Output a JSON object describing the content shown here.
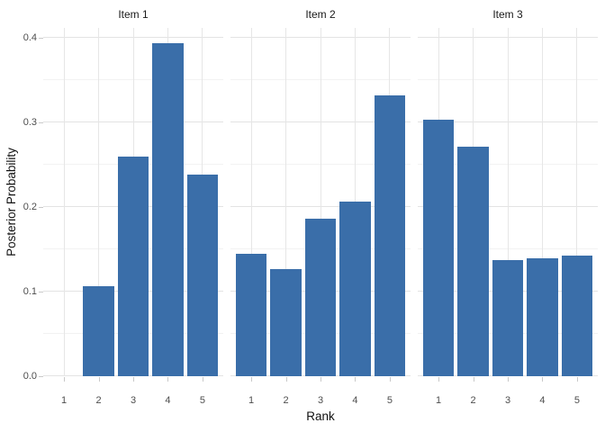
{
  "chart_data": {
    "type": "bar",
    "title": "",
    "xlabel": "Rank",
    "ylabel": "Posterior Probability",
    "categories": [
      "1",
      "2",
      "3",
      "4",
      "5"
    ],
    "facets": [
      {
        "title": "Item 1",
        "values": [
          0.0,
          0.107,
          0.26,
          0.394,
          0.239
        ]
      },
      {
        "title": "Item 2",
        "values": [
          0.145,
          0.127,
          0.186,
          0.207,
          0.332
        ]
      },
      {
        "title": "Item 3",
        "values": [
          0.303,
          0.272,
          0.137,
          0.14,
          0.143
        ]
      }
    ],
    "ylim": [
      0,
      0.412
    ],
    "y_major_tick_labels": [
      "0.0",
      "0.1",
      "0.2",
      "0.3",
      "0.4"
    ],
    "y_minor_ticks": [
      0.05,
      0.15,
      0.25,
      0.35
    ],
    "bar_color": "#3A6EA9",
    "grid": "major and minor horizontal, major vertical",
    "legend_position": "none",
    "panel_background": "#ffffff"
  }
}
